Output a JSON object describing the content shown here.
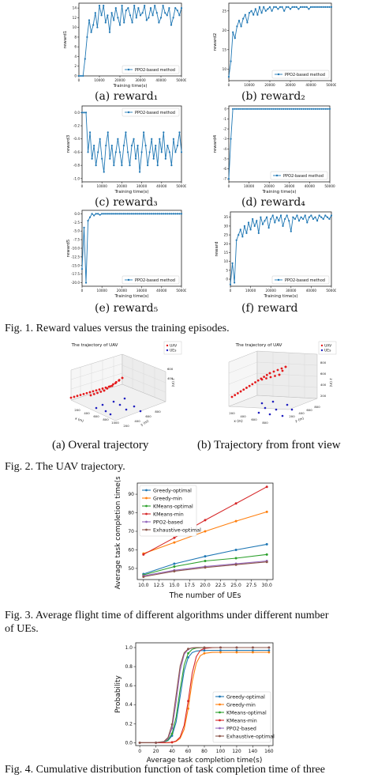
{
  "figures": {
    "fig1": {
      "caption": "Fig. 1.   Reward values versus the training episodes.",
      "subfigs": [
        {
          "caption": "(a) reward₁",
          "ylabel": "reward1",
          "xlabel": "Training time(s)",
          "legend": "PPO2-based method",
          "xticks": [
            "0",
            "10000",
            "20000",
            "30000",
            "40000",
            "50000"
          ],
          "yticks": [
            "0",
            "2",
            "4",
            "6",
            "8",
            "10",
            "12",
            "14"
          ],
          "legend_pos": "bottom-right"
        },
        {
          "caption": "(b) reward₂",
          "ylabel": "reward2",
          "xlabel": "",
          "legend": "PPO2-based method",
          "xticks": [
            "0",
            "10000",
            "20000",
            "30000",
            "40000",
            "50000"
          ],
          "yticks": [
            "10",
            "15",
            "20",
            "25"
          ],
          "legend_pos": "bottom-right"
        },
        {
          "caption": "(c) reward₃",
          "ylabel": "reward3",
          "xlabel": "Training time(s)",
          "legend": "PPO2-based method",
          "xticks": [
            "0",
            "10000",
            "20000",
            "30000",
            "40000",
            "50000"
          ],
          "yticks": [
            "0.0",
            "-0.2",
            "-0.4",
            "-0.6",
            "-0.8",
            "-1.0"
          ],
          "legend_pos": "top-right"
        },
        {
          "caption": "(d) reward₄",
          "ylabel": "reward4",
          "xlabel": "Training time(s)",
          "legend": "PPO2-based method",
          "xticks": [
            "0",
            "10000",
            "20000",
            "30000",
            "40000",
            "50000"
          ],
          "yticks": [
            "0",
            "-1",
            "-2",
            "-3",
            "-4",
            "-5",
            "-6",
            "-7"
          ],
          "legend_pos": "bottom-right"
        },
        {
          "caption": "(e) reward₅",
          "ylabel": "reward5",
          "xlabel": "Training time(s)",
          "legend": "PPO2-based method",
          "xticks": [
            "0",
            "10000",
            "20000",
            "30000",
            "40000",
            "50000"
          ],
          "yticks": [
            "0.0",
            "-2.5",
            "-5.0",
            "-7.5",
            "-10.0",
            "-12.5",
            "-15.0",
            "-17.5",
            "-20.0"
          ],
          "legend_pos": "bottom-right"
        },
        {
          "caption": "(f) reward",
          "ylabel": "reward",
          "xlabel": "Training time(s)",
          "legend": "PPO2-based method",
          "xticks": [
            "0",
            "10000",
            "20000",
            "30000",
            "40000",
            "50000"
          ],
          "yticks": [
            "0",
            "5",
            "10",
            "15",
            "20",
            "25",
            "30",
            "35"
          ],
          "legend_pos": "bottom-right"
        }
      ]
    },
    "fig2": {
      "caption": "Fig. 2.   The UAV trajectory.",
      "subfigs": [
        {
          "caption": "(a) Overal trajectory",
          "title": "The trajectory of UAV",
          "legend": [
            "UAV",
            "UEs"
          ],
          "axis_labels": [
            "x (m)",
            "y (m)",
            "z (m)"
          ],
          "ticks_x": [
            "200",
            "400",
            "600",
            "800",
            "1000"
          ],
          "ticks_y": [
            "200",
            "400",
            "600",
            "800"
          ],
          "ticks_z": [
            "400",
            "600"
          ]
        },
        {
          "caption": "(b) Trajectory from front view",
          "title": "The trajectory of UAV",
          "legend": [
            "UAV",
            "UEs"
          ],
          "axis_labels": [
            "x (m)",
            "y (m)",
            "z (m)"
          ],
          "ticks_x": [
            "200",
            "400",
            "600",
            "800"
          ],
          "ticks_y": [
            "200",
            "400",
            "600",
            "800"
          ],
          "ticks_z": [
            "200",
            "400",
            "600",
            "800"
          ]
        }
      ]
    },
    "fig3": {
      "caption_line1": "Fig. 3.    Average flight time of different algorithms under different number",
      "caption_line2": "of UEs."
    },
    "fig4": {
      "caption_line1": "Fig. 4.    Cumulative distribution function of task completion time of three"
    }
  },
  "chart_data": [
    {
      "type": "line",
      "id": "reward1",
      "x": [
        0,
        1000,
        2000,
        3000,
        4000,
        5000,
        6000,
        7000,
        8000,
        9000,
        10000,
        11000,
        12000,
        13000,
        14000,
        15000,
        16000,
        17000,
        18000,
        19000,
        20000,
        21000,
        22000,
        23000,
        24000,
        25000,
        26000,
        27000,
        28000,
        29000,
        30000,
        31000,
        32000,
        33000,
        34000,
        35000,
        36000,
        37000,
        38000,
        39000,
        40000,
        41000,
        42000,
        43000,
        44000,
        45000,
        46000,
        47000,
        48000,
        49000,
        50000
      ],
      "series": [
        {
          "name": "PPO2-based method",
          "values": [
            0,
            0,
            0,
            3.5,
            8,
            11.5,
            9,
            10.5,
            13,
            10,
            14.5,
            12.5,
            14.5,
            11,
            12.5,
            9,
            13,
            11.5,
            14,
            12,
            10.5,
            14.5,
            11,
            13.5,
            14,
            12.5,
            11,
            14.5,
            12,
            14,
            12.5,
            13,
            14.5,
            11.5,
            12,
            14,
            12.5,
            14.5,
            13,
            11,
            12,
            14.5,
            13,
            12.5,
            14,
            10.5,
            12,
            14,
            13.5,
            12.5,
            14
          ]
        }
      ],
      "xlim": [
        0,
        50000
      ],
      "ylim": [
        0,
        15
      ]
    },
    {
      "type": "line",
      "id": "reward2",
      "x": [
        0,
        1000,
        2000,
        3000,
        4000,
        5000,
        6000,
        7000,
        8000,
        9000,
        10000,
        11000,
        12000,
        13000,
        14000,
        15000,
        16000,
        17000,
        18000,
        19000,
        20000,
        21000,
        22000,
        23000,
        24000,
        25000,
        26000,
        27000,
        28000,
        29000,
        30000,
        31000,
        32000,
        33000,
        34000,
        35000,
        36000,
        37000,
        38000,
        39000,
        40000,
        41000,
        42000,
        43000,
        44000,
        45000,
        46000,
        47000,
        48000,
        49000,
        50000
      ],
      "series": [
        {
          "name": "PPO2-based method",
          "values": [
            8,
            12,
            19.5,
            18,
            21,
            22.5,
            21,
            23,
            24,
            22,
            24.5,
            25,
            24,
            25.5,
            24,
            26,
            24.5,
            26,
            25,
            25.5,
            26,
            25,
            26,
            26,
            25.5,
            26,
            26,
            25,
            26,
            26,
            25.5,
            26,
            26,
            26,
            25.5,
            26,
            26,
            26,
            26,
            25.5,
            26,
            26,
            26,
            26,
            26,
            26,
            26,
            26,
            26,
            26,
            26
          ]
        }
      ],
      "xlim": [
        0,
        50000
      ],
      "ylim": [
        7,
        27
      ]
    },
    {
      "type": "line",
      "id": "reward3",
      "x": [
        0,
        1000,
        2000,
        3000,
        4000,
        5000,
        6000,
        7000,
        8000,
        9000,
        10000,
        11000,
        12000,
        13000,
        14000,
        15000,
        16000,
        17000,
        18000,
        19000,
        20000,
        21000,
        22000,
        23000,
        24000,
        25000,
        26000,
        27000,
        28000,
        29000,
        30000,
        31000,
        32000,
        33000,
        34000,
        35000,
        36000,
        37000,
        38000,
        39000,
        40000,
        41000,
        42000,
        43000,
        44000,
        45000,
        46000,
        47000,
        48000,
        49000,
        50000
      ],
      "series": [
        {
          "name": "PPO2-based method",
          "values": [
            0,
            0,
            0,
            -0.6,
            -0.3,
            -0.7,
            -0.5,
            -0.8,
            -0.6,
            -0.4,
            -0.7,
            -0.9,
            -0.5,
            -0.3,
            -0.7,
            -0.5,
            -0.8,
            -0.6,
            -0.4,
            -0.6,
            -0.8,
            -0.5,
            -0.3,
            -0.6,
            -0.8,
            -0.5,
            -0.4,
            -0.7,
            -0.5,
            -0.9,
            -0.6,
            -0.3,
            -0.5,
            -0.8,
            -0.6,
            -0.4,
            -0.7,
            -0.5,
            -0.8,
            -0.4,
            -0.6,
            -0.3,
            -0.7,
            -0.5,
            -0.6,
            -0.8,
            -0.4,
            -0.6,
            -0.5,
            -0.3,
            -0.6
          ]
        }
      ],
      "xlim": [
        0,
        50000
      ],
      "ylim": [
        -1.05,
        0.1
      ]
    },
    {
      "type": "line",
      "id": "reward4",
      "x": [
        0,
        1000,
        2000,
        3000,
        4000,
        5000,
        6000,
        7000,
        8000,
        9000,
        10000,
        11000,
        12000,
        13000,
        14000,
        15000,
        16000,
        17000,
        18000,
        19000,
        20000,
        21000,
        22000,
        23000,
        24000,
        25000,
        26000,
        27000,
        28000,
        29000,
        30000,
        31000,
        32000,
        33000,
        34000,
        35000,
        36000,
        37000,
        38000,
        39000,
        40000,
        41000,
        42000,
        43000,
        44000,
        45000,
        46000,
        47000,
        48000,
        49000,
        50000
      ],
      "series": [
        {
          "name": "PPO2-based method",
          "values": [
            -7,
            -3,
            0,
            0,
            0,
            0,
            0,
            0,
            0,
            0,
            0,
            0,
            0,
            0,
            0,
            0,
            0,
            0,
            0,
            0,
            0,
            0,
            0,
            0,
            0,
            0,
            0,
            0,
            0,
            0,
            0,
            0,
            0,
            0,
            0,
            0,
            0,
            0,
            0,
            0,
            0,
            0,
            0,
            0,
            0,
            0,
            0,
            0,
            0,
            0,
            0
          ]
        }
      ],
      "xlim": [
        0,
        50000
      ],
      "ylim": [
        -7.3,
        0.3
      ]
    },
    {
      "type": "line",
      "id": "reward5",
      "x": [
        0,
        1000,
        2000,
        3000,
        4000,
        5000,
        6000,
        7000,
        8000,
        9000,
        10000,
        11000,
        12000,
        13000,
        14000,
        15000,
        16000,
        17000,
        18000,
        19000,
        20000,
        21000,
        22000,
        23000,
        24000,
        25000,
        26000,
        27000,
        28000,
        29000,
        30000,
        31000,
        32000,
        33000,
        34000,
        35000,
        36000,
        37000,
        38000,
        39000,
        40000,
        41000,
        42000,
        43000,
        44000,
        45000,
        46000,
        47000,
        48000,
        49000,
        50000
      ],
      "series": [
        {
          "name": "PPO2-based method",
          "values": [
            -16,
            -4,
            -20,
            -2,
            -1,
            0,
            -0.5,
            0,
            0,
            -0.3,
            0,
            0,
            0,
            0,
            0,
            0,
            0,
            0,
            0,
            0,
            0,
            0,
            0,
            0,
            0,
            0,
            0,
            0,
            0,
            0,
            0,
            0,
            0,
            0,
            0,
            0,
            0,
            0,
            0,
            0,
            0,
            0,
            0,
            0,
            0,
            0,
            0,
            0,
            0,
            0,
            0
          ]
        }
      ],
      "xlim": [
        0,
        50000
      ],
      "ylim": [
        -21,
        1
      ]
    },
    {
      "type": "line",
      "id": "reward",
      "x": [
        0,
        1000,
        2000,
        3000,
        4000,
        5000,
        6000,
        7000,
        8000,
        9000,
        10000,
        11000,
        12000,
        13000,
        14000,
        15000,
        16000,
        17000,
        18000,
        19000,
        20000,
        21000,
        22000,
        23000,
        24000,
        25000,
        26000,
        27000,
        28000,
        29000,
        30000,
        31000,
        32000,
        33000,
        34000,
        35000,
        36000,
        37000,
        38000,
        39000,
        40000,
        41000,
        42000,
        43000,
        44000,
        45000,
        46000,
        47000,
        48000,
        49000,
        50000
      ],
      "series": [
        {
          "name": "PPO2-based method",
          "values": [
            -3,
            9,
            -2,
            22,
            25,
            28,
            24,
            30,
            26,
            32,
            28,
            34,
            30,
            33,
            26,
            35,
            31,
            33,
            35,
            29,
            34,
            36,
            32,
            35,
            33,
            36,
            30,
            34,
            36,
            33,
            27,
            35,
            34,
            36,
            33,
            35,
            34,
            36,
            32,
            35,
            36,
            34,
            35,
            33,
            36,
            35,
            34,
            36,
            35,
            34,
            36
          ]
        }
      ],
      "xlim": [
        0,
        50000
      ],
      "ylim": [
        -4,
        38
      ]
    },
    {
      "type": "line",
      "id": "fig3",
      "xlabel": "The number of UEs",
      "ylabel": "Average task completion time(s)",
      "x": [
        10,
        15,
        20,
        25,
        30
      ],
      "xticks": [
        "10.0",
        "12.5",
        "15.0",
        "17.5",
        "20.0",
        "22.5",
        "25.0",
        "27.5",
        "30.0"
      ],
      "yticks": [
        "50",
        "60",
        "70",
        "80",
        "90"
      ],
      "xlim": [
        9,
        31
      ],
      "ylim": [
        44,
        96
      ],
      "series": [
        {
          "name": "Greedy-optimal",
          "color": "#1f77b4",
          "values": [
            47,
            52.5,
            56.5,
            60,
            63
          ]
        },
        {
          "name": "Greedy-min",
          "color": "#ff7f0e",
          "values": [
            58,
            64,
            70,
            75.5,
            80.5
          ]
        },
        {
          "name": "KMeans-optimal",
          "color": "#2ca02c",
          "values": [
            46.5,
            51,
            54,
            55.5,
            57.5
          ]
        },
        {
          "name": "KMeans-min",
          "color": "#d62728",
          "values": [
            57.5,
            66.5,
            76,
            85,
            94
          ]
        },
        {
          "name": "PPO2-based",
          "color": "#9467bd",
          "values": [
            46,
            49,
            51,
            52.5,
            54
          ]
        },
        {
          "name": "Exhaustive-optimal",
          "color": "#8c564b",
          "values": [
            45.5,
            48.5,
            50.5,
            52,
            53.5
          ]
        }
      ]
    },
    {
      "type": "line",
      "id": "fig4",
      "xlabel": "Average task completion time(s)",
      "ylabel": "Probability",
      "xticks": [
        "0",
        "20",
        "40",
        "60",
        "80",
        "100",
        "120",
        "140",
        "160"
      ],
      "yticks": [
        "0.0",
        "0.2",
        "0.4",
        "0.6",
        "0.8",
        "1.0"
      ],
      "xlim": [
        -5,
        165
      ],
      "ylim": [
        -0.03,
        1.05
      ],
      "series": [
        {
          "name": "Greedy-optimal",
          "color": "#1f77b4",
          "mean": 50,
          "scale": 4,
          "plateau": 0.97
        },
        {
          "name": "Greedy-min",
          "color": "#ff7f0e",
          "mean": 62,
          "scale": 4,
          "plateau": 0.95
        },
        {
          "name": "KMeans-optimal",
          "color": "#2ca02c",
          "mean": 49,
          "scale": 4,
          "plateau": 1.0
        },
        {
          "name": "KMeans-min",
          "color": "#d62728",
          "mean": 61,
          "scale": 4,
          "plateau": 1.0
        },
        {
          "name": "PPO2-based",
          "color": "#9467bd",
          "mean": 46,
          "scale": 3.5,
          "plateau": 1.0
        },
        {
          "name": "Exhaustive-optimal",
          "color": "#8c564b",
          "mean": 45,
          "scale": 3.5,
          "plateau": 1.0
        }
      ]
    }
  ],
  "colors": {
    "line": "#1f77b4",
    "uav": "#e41a1c",
    "ue": "#1f1fbf"
  }
}
